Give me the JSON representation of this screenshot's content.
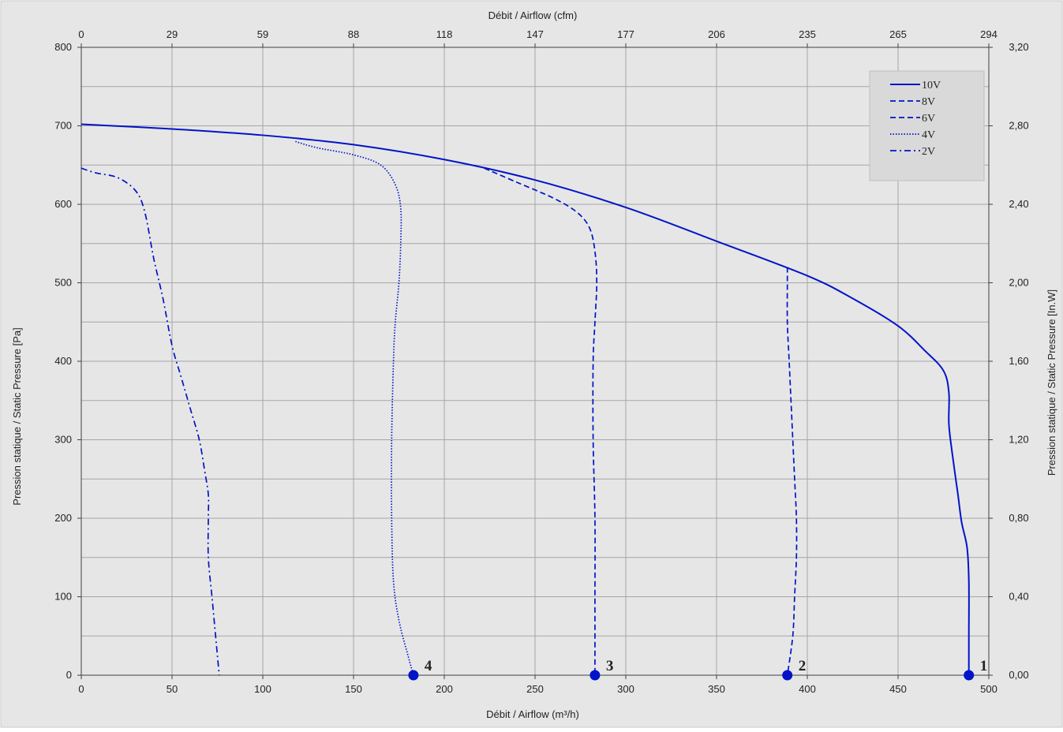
{
  "chart_data": {
    "type": "line",
    "colors": {
      "background": "#e6e6e6",
      "grid": "#a6a6a6",
      "series": "#0014c8",
      "legend_bg": "#d9d9d9"
    },
    "xlabel_bottom": "Débit / Airflow (m³/h)",
    "xlabel_top": "Débit / Airflow (cfm)",
    "ylabel_left": "Pression statique / Static Pressure [Pa]",
    "ylabel_right": "Pression statique / Static Pressure [In.W]",
    "xlim": [
      0,
      500
    ],
    "ylim": [
      0,
      800
    ],
    "grid": true,
    "legend_placement": "top-right",
    "x_ticks": [
      "0",
      "50",
      "100",
      "150",
      "200",
      "250",
      "300",
      "350",
      "400",
      "450",
      "500"
    ],
    "x_top_ticks": [
      "0",
      "29",
      "59",
      "88",
      "118",
      "147",
      "177",
      "206",
      "235",
      "265",
      "294"
    ],
    "y_ticks": [
      "0",
      "100",
      "200",
      "300",
      "400",
      "500",
      "600",
      "700",
      "800"
    ],
    "y_right_ticks": [
      "0,00",
      "0,40",
      "0,80",
      "1,20",
      "1,60",
      "2,00",
      "2,40",
      "2,80",
      "3,20"
    ],
    "series": [
      {
        "name": "10V",
        "dash": "solid",
        "points": [
          [
            0,
            702
          ],
          [
            50,
            696
          ],
          [
            100,
            688
          ],
          [
            150,
            676
          ],
          [
            200,
            657
          ],
          [
            250,
            631
          ],
          [
            300,
            596
          ],
          [
            350,
            553
          ],
          [
            400,
            509
          ],
          [
            425,
            480
          ],
          [
            450,
            445
          ],
          [
            465,
            413
          ],
          [
            475,
            388
          ],
          [
            478,
            360
          ],
          [
            478,
            320
          ],
          [
            480,
            280
          ],
          [
            483,
            230
          ],
          [
            485,
            195
          ],
          [
            488,
            163
          ],
          [
            489,
            120
          ],
          [
            489,
            50
          ],
          [
            489,
            0
          ]
        ]
      },
      {
        "name": "8V",
        "dash": "dashed",
        "points": [
          [
            389,
            520
          ],
          [
            389,
            500
          ],
          [
            389,
            450
          ],
          [
            390,
            400
          ],
          [
            391,
            350
          ],
          [
            392,
            300
          ],
          [
            393,
            250
          ],
          [
            394,
            200
          ],
          [
            394,
            150
          ],
          [
            393,
            100
          ],
          [
            392,
            50
          ],
          [
            389,
            0
          ]
        ]
      },
      {
        "name": "6V",
        "dash": "dashed",
        "points": [
          [
            222,
            646
          ],
          [
            240,
            628
          ],
          [
            260,
            608
          ],
          [
            273,
            590
          ],
          [
            280,
            570
          ],
          [
            283,
            540
          ],
          [
            284,
            500
          ],
          [
            283,
            450
          ],
          [
            282,
            400
          ],
          [
            282,
            300
          ],
          [
            283,
            200
          ],
          [
            283,
            100
          ],
          [
            283,
            30
          ],
          [
            283,
            0
          ]
        ]
      },
      {
        "name": "4V",
        "dash": "dotted",
        "points": [
          [
            118,
            680
          ],
          [
            130,
            672
          ],
          [
            150,
            663
          ],
          [
            165,
            650
          ],
          [
            173,
            625
          ],
          [
            176,
            595
          ],
          [
            176,
            550
          ],
          [
            175,
            500
          ],
          [
            173,
            450
          ],
          [
            172,
            400
          ],
          [
            171,
            300
          ],
          [
            171,
            200
          ],
          [
            172,
            120
          ],
          [
            175,
            70
          ],
          [
            180,
            25
          ],
          [
            183,
            0
          ]
        ]
      },
      {
        "name": "2V",
        "dash": "dashdot",
        "points": [
          [
            0,
            646
          ],
          [
            8,
            640
          ],
          [
            20,
            634
          ],
          [
            30,
            617
          ],
          [
            35,
            590
          ],
          [
            40,
            530
          ],
          [
            45,
            480
          ],
          [
            50,
            420
          ],
          [
            55,
            380
          ],
          [
            60,
            340
          ],
          [
            65,
            300
          ],
          [
            68,
            260
          ],
          [
            70,
            230
          ],
          [
            70,
            200
          ],
          [
            70,
            150
          ],
          [
            72,
            100
          ],
          [
            74,
            50
          ],
          [
            76,
            0
          ]
        ]
      }
    ],
    "annotations": [
      {
        "label": "1",
        "x": 489,
        "y": 0
      },
      {
        "label": "2",
        "x": 389,
        "y": 0
      },
      {
        "label": "3",
        "x": 283,
        "y": 0
      },
      {
        "label": "4",
        "x": 183,
        "y": 0
      }
    ]
  }
}
